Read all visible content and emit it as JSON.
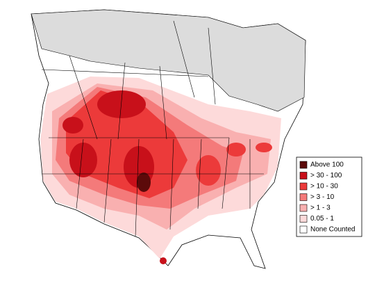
{
  "legend": {
    "items": [
      {
        "label": "Above 100",
        "color": "#5c0a0a"
      },
      {
        "label": "> 30 - 100",
        "color": "#c8101a"
      },
      {
        "label": "> 10 - 30",
        "color": "#ec3a3a"
      },
      {
        "label": "> 3 - 10",
        "color": "#f47a7a"
      },
      {
        "label": "> 1 - 3",
        "color": "#f9b0b0"
      },
      {
        "label": "0.05 - 1",
        "color": "#fddada"
      },
      {
        "label": "None Counted",
        "color": "#ffffff"
      }
    ]
  }
}
